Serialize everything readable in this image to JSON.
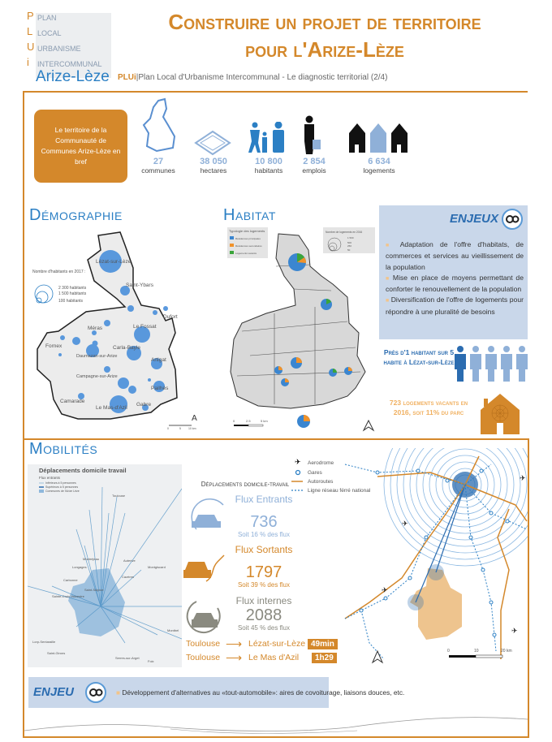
{
  "header": {
    "logo_letters": [
      "P",
      "L",
      "U",
      "i"
    ],
    "logo_words": [
      "PLAN",
      "LOCAL",
      "URBANISME",
      "INTERCOMMUNAL"
    ],
    "brand": "Arize-Lèze",
    "title_line1": "Construire un projet de territoire",
    "title_line2": "pour l'Arize-Lèze",
    "subtitle_tag": "PLUi",
    "subtitle": "|Plan Local d'Urbanisme Intercommunal - Le diagnostic territorial (2/4)"
  },
  "brief": {
    "label": "Le territoire de la Communauté de Communes Arize-Lèze en bref",
    "stats": [
      {
        "value": "27",
        "label": "communes",
        "icon": "territory-outline-icon"
      },
      {
        "value": "38 050",
        "label": "hectares",
        "icon": "area-icon"
      },
      {
        "value": "10 800",
        "label": "habitants",
        "icon": "family-icon"
      },
      {
        "value": "2 854",
        "label": "emplois",
        "icon": "businessman-icon"
      },
      {
        "value": "6 634",
        "label": "logements",
        "icon": "houses-icon"
      }
    ]
  },
  "demographie": {
    "heading": "Démographie",
    "legend_title": "Nombre d'habitants en 2017 :",
    "legend_items": [
      "2 300 habitants",
      "1 500 habitants",
      "100 habitants"
    ],
    "towns": [
      "Lézat-sur-Lèze",
      "Saint-Ybars",
      "Dufort",
      "Le Fossat",
      "Méras",
      "Fornex",
      "Carla-Bayle",
      "Daumazan-sur-Arize",
      "Artigat",
      "Campagne-sur-Arize",
      "Pailhès",
      "Camarade",
      "Le Mas-d'Azil",
      "Gabre"
    ],
    "scale": [
      "0",
      "5",
      "10 km"
    ]
  },
  "habitat": {
    "heading": "Habitat",
    "legend_title": "Typologie des logements",
    "legend_items": [
      {
        "label": "Résidences principales",
        "color": "#3b86d0"
      },
      {
        "label": "Résidences secondaires",
        "color": "#f0922a"
      },
      {
        "label": "Logements vacants",
        "color": "#3aa53a"
      }
    ],
    "size_legend_title": "Nombre de logements en 2016",
    "size_legend_items": [
      "1 500",
      "500",
      "250",
      "50"
    ],
    "scale": [
      "0",
      "2.5",
      "5 km"
    ]
  },
  "enjeux": {
    "title": "ENJEUX",
    "items": [
      "Adaptation de l'offre d'habitats, de commerces et services au vieillissement de la population",
      "Mise en place de moyens permettant de conforter le renouvellement de la population",
      "Diversification de l'offre de logements pour répondre à une pluralité de besoins"
    ]
  },
  "highlights": {
    "lezat": "Près d'1 habitant sur 5 habite à Lézat-sur-Lèze",
    "lezat_ratio": 0.2,
    "vacants": "723 logements vacants en 2016, soit 11% du parc"
  },
  "mobilites": {
    "heading": "Mobilités",
    "map_title": "Déplacements domicile travail",
    "map_legend_title": "Flux entrants",
    "map_legend_items": [
      "Inférieurs à 5 personnes",
      "Supérieurs à 5 personnes",
      "Communes de l'Arize Lèze"
    ],
    "map_places": [
      "Toulouse",
      "Montréjeau",
      "Longages",
      "Carbonne",
      "Auterive",
      "Montgiscard",
      "Cazères",
      "Saint-Sulpice",
      "Sainte-Croix-Volvestre",
      "Mazères",
      "Lorp-Sentaraille",
      "Saint-Girons",
      "Serres-sur-Arget",
      "Foix",
      "Montbel"
    ],
    "dt_title": "Déplacements domicile-travail",
    "flux": [
      {
        "label": "Flux Entrants",
        "value": "736",
        "share": "Soit 16 % des flux",
        "color": "#8fb0d8"
      },
      {
        "label": "Flux Sortants",
        "value": "1797",
        "share": "Soit 39 % des flux",
        "color": "#d4882b"
      },
      {
        "label": "Flux internes",
        "value": "2088",
        "share": "Soit 45 % des flux",
        "color": "#8a8a80"
      }
    ],
    "routes": [
      {
        "from": "Toulouse",
        "to": "Lézat-sur-Lèze",
        "duration": "49min"
      },
      {
        "from": "Toulouse",
        "to": "Le Mas d'Azil",
        "duration": "1h29"
      }
    ],
    "network_legend": [
      "Aerodrome",
      "Gares",
      "Autoroutes",
      "Ligne réseau férré national"
    ],
    "network_scale": [
      "0",
      "10",
      "20 km"
    ]
  },
  "enjeu": {
    "title": "ENJEU",
    "item": "Développement d'alternatives au «tout-automobile»: aires de covoiturage, liaisons douces, etc."
  },
  "colors": {
    "accent": "#d4882b",
    "blue": "#2b7fc4",
    "light_blue": "#c9d7ea"
  }
}
